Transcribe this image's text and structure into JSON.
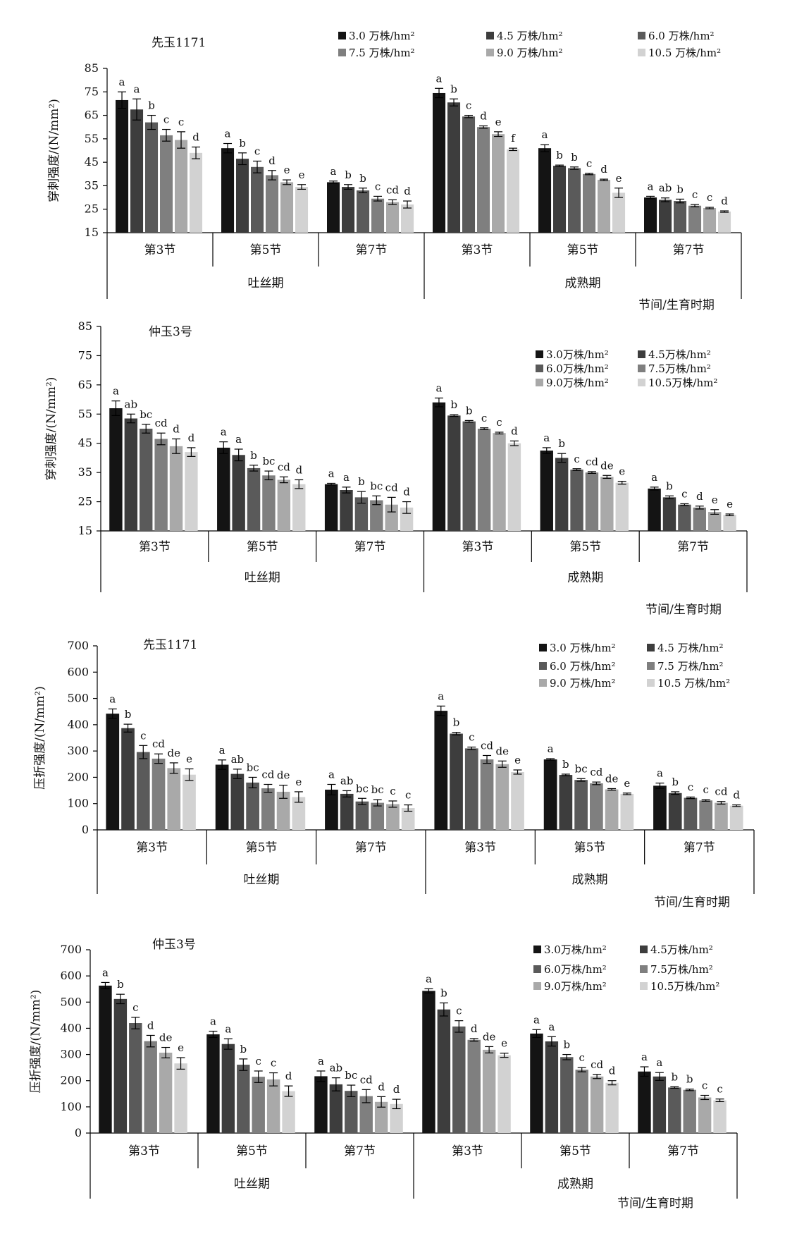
{
  "chart_data": [
    {
      "type": "bar",
      "title": "先玉1171",
      "ylabel": "穿刺强度/(N/mm²)",
      "xlabel": "节间/生育时期",
      "ylim": [
        15,
        85
      ],
      "yticks": [
        15,
        25,
        35,
        45,
        55,
        65,
        75,
        85
      ],
      "legend": "top-right",
      "series_names": [
        "3.0 万株/hm²",
        "4.5 万株/hm²",
        "6.0 万株/hm²",
        "7.5 万株/hm²",
        "9.0 万株/hm²",
        "10.5 万株/hm²"
      ],
      "periods": [
        "吐丝期",
        "成熟期"
      ],
      "groups": [
        {
          "period": "吐丝期",
          "label": "第3节",
          "values": [
            71.5,
            67.5,
            62,
            56.5,
            54.5,
            49
          ],
          "errors": [
            3.5,
            4.5,
            3,
            2.5,
            3.5,
            2.5
          ],
          "letters": [
            "a",
            "a",
            "b",
            "c",
            "c",
            "d"
          ]
        },
        {
          "period": "吐丝期",
          "label": "第5节",
          "values": [
            51,
            46.5,
            43,
            39.5,
            36.5,
            34.5
          ],
          "errors": [
            2,
            2.5,
            2.5,
            2,
            1,
            1
          ],
          "letters": [
            "a",
            "b",
            "c",
            "d",
            "e",
            "e"
          ]
        },
        {
          "period": "吐丝期",
          "label": "第7节",
          "values": [
            36.5,
            34.5,
            33,
            29.5,
            28,
            27
          ],
          "errors": [
            0.5,
            1,
            1,
            1,
            1,
            1.5
          ],
          "letters": [
            "a",
            "b",
            "b",
            "c",
            "cd",
            "d"
          ]
        },
        {
          "period": "成熟期",
          "label": "第3节",
          "values": [
            74.5,
            70.5,
            64.5,
            60,
            57,
            50.5
          ],
          "errors": [
            2,
            1.5,
            0.5,
            0.5,
            1,
            0.5
          ],
          "letters": [
            "a",
            "b",
            "c",
            "d",
            "e",
            "f"
          ]
        },
        {
          "period": "成熟期",
          "label": "第5节",
          "values": [
            51,
            43.5,
            42.5,
            40,
            37.5,
            32
          ],
          "errors": [
            1.5,
            0.3,
            0.5,
            0.3,
            0.3,
            2
          ],
          "letters": [
            "a",
            "b",
            "b",
            "c",
            "d",
            "e"
          ]
        },
        {
          "period": "成熟期",
          "label": "第7节",
          "values": [
            30,
            29,
            28.5,
            26.5,
            25.5,
            24
          ],
          "errors": [
            0.5,
            0.8,
            0.8,
            0.5,
            0.3,
            0.3
          ],
          "letters": [
            "a",
            "ab",
            "b",
            "c",
            "c",
            "d"
          ]
        }
      ]
    },
    {
      "type": "bar",
      "title": "仲玉3号",
      "ylabel": "穿刺强度/(N/mm²)",
      "xlabel": "节间/生育时期",
      "ylim": [
        15,
        85
      ],
      "yticks": [
        15,
        25,
        35,
        45,
        55,
        65,
        75,
        85
      ],
      "legend": "right",
      "series_names": [
        "3.0万株/hm²",
        "4.5万株/hm²",
        "6.0万株/hm²",
        "7.5万株/hm²",
        "9.0万株/hm²",
        "10.5万株/hm²"
      ],
      "periods": [
        "吐丝期",
        "成熟期"
      ],
      "groups": [
        {
          "period": "吐丝期",
          "label": "第3节",
          "values": [
            57,
            53.5,
            50,
            46.5,
            44,
            42
          ],
          "errors": [
            2.5,
            1.5,
            1.5,
            2,
            2.5,
            1.5
          ],
          "letters": [
            "a",
            "ab",
            "bc",
            "cd",
            "d",
            "d"
          ]
        },
        {
          "period": "吐丝期",
          "label": "第5节",
          "values": [
            43.5,
            41,
            36.5,
            34,
            32.5,
            31
          ],
          "errors": [
            2,
            2,
            1,
            1.5,
            1,
            1.5
          ],
          "letters": [
            "a",
            "a",
            "b",
            "bc",
            "cd",
            "d"
          ]
        },
        {
          "period": "吐丝期",
          "label": "第7节",
          "values": [
            31,
            29,
            26.5,
            25.5,
            24,
            23
          ],
          "errors": [
            0.3,
            1,
            2,
            1.5,
            2.5,
            2
          ],
          "letters": [
            "a",
            "a",
            "b",
            "bc",
            "cd",
            "d"
          ]
        },
        {
          "period": "成熟期",
          "label": "第3节",
          "values": [
            59,
            54.5,
            52.5,
            50,
            48.5,
            45
          ],
          "errors": [
            1.5,
            0.3,
            0.3,
            0.3,
            0.3,
            0.8
          ],
          "letters": [
            "a",
            "b",
            "b",
            "c",
            "c",
            "d"
          ]
        },
        {
          "period": "成熟期",
          "label": "第5节",
          "values": [
            42.5,
            40,
            36,
            35,
            33.5,
            31.5
          ],
          "errors": [
            1,
            1.5,
            0.3,
            0.3,
            0.5,
            0.5
          ],
          "letters": [
            "a",
            "b",
            "c",
            "cd",
            "de",
            "e"
          ]
        },
        {
          "period": "成熟期",
          "label": "第7节",
          "values": [
            29.5,
            26.5,
            24,
            23,
            21.5,
            20.5
          ],
          "errors": [
            0.5,
            0.5,
            0.3,
            0.5,
            0.8,
            0.3
          ],
          "letters": [
            "a",
            "b",
            "c",
            "d",
            "e",
            "e"
          ]
        }
      ]
    },
    {
      "type": "bar",
      "title": "先玉1171",
      "ylabel": "压折强度/(N/mm²)",
      "xlabel": "节间/生育时期",
      "ylim": [
        0,
        700
      ],
      "yticks": [
        0,
        100,
        200,
        300,
        400,
        500,
        600,
        700
      ],
      "legend": "right",
      "series_names": [
        "3.0 万株/hm²",
        "4.5 万株/hm²",
        "6.0 万株/hm²",
        "7.5 万株/hm²",
        "9.0 万株/hm²",
        "10.5 万株/hm²"
      ],
      "periods": [
        "吐丝期",
        "成熟期"
      ],
      "groups": [
        {
          "period": "吐丝期",
          "label": "第3节",
          "values": [
            442,
            387,
            296,
            271,
            235,
            210
          ],
          "errors": [
            18,
            15,
            25,
            18,
            20,
            22
          ],
          "letters": [
            "a",
            "b",
            "c",
            "cd",
            "de",
            "e"
          ]
        },
        {
          "period": "吐丝期",
          "label": "第5节",
          "values": [
            248,
            213,
            180,
            158,
            145,
            125
          ],
          "errors": [
            18,
            18,
            20,
            15,
            25,
            20
          ],
          "letters": [
            "a",
            "ab",
            "bc",
            "cd",
            "de",
            "e"
          ]
        },
        {
          "period": "吐丝期",
          "label": "第7节",
          "values": [
            153,
            137,
            108,
            103,
            98,
            83
          ],
          "errors": [
            20,
            12,
            12,
            12,
            12,
            12
          ],
          "letters": [
            "a",
            "ab",
            "bc",
            "bc",
            "c",
            "c"
          ]
        },
        {
          "period": "成熟期",
          "label": "第3节",
          "values": [
            453,
            366,
            310,
            268,
            250,
            220
          ],
          "errors": [
            18,
            5,
            5,
            15,
            12,
            8
          ],
          "letters": [
            "a",
            "b",
            "c",
            "cd",
            "de",
            "e"
          ]
        },
        {
          "period": "成熟期",
          "label": "第5节",
          "values": [
            268,
            209,
            190,
            177,
            154,
            137
          ],
          "errors": [
            3,
            3,
            5,
            5,
            3,
            3
          ],
          "letters": [
            "a",
            "b",
            "bc",
            "cd",
            "de",
            "e"
          ]
        },
        {
          "period": "成熟期",
          "label": "第7节",
          "values": [
            168,
            140,
            122,
            112,
            103,
            92
          ],
          "errors": [
            10,
            5,
            3,
            3,
            5,
            3
          ],
          "letters": [
            "a",
            "b",
            "c",
            "c",
            "cd",
            "d"
          ]
        }
      ]
    },
    {
      "type": "bar",
      "title": "仲玉3号",
      "ylabel": "压折强度/(N/mm²)",
      "xlabel": "节间/生育时期",
      "ylim": [
        0,
        700
      ],
      "yticks": [
        0,
        100,
        200,
        300,
        400,
        500,
        600,
        700
      ],
      "legend": "right",
      "series_names": [
        "3.0万株/hm²",
        "4.5万株/hm²",
        "6.0万株/hm²",
        "7.5万株/hm²",
        "9.0万株/hm²",
        "10.5万株/hm²"
      ],
      "periods": [
        "吐丝期",
        "成熟期"
      ],
      "groups": [
        {
          "period": "吐丝期",
          "label": "第3节",
          "values": [
            563,
            512,
            420,
            351,
            307,
            266
          ],
          "errors": [
            12,
            18,
            22,
            22,
            20,
            22
          ],
          "letters": [
            "a",
            "b",
            "c",
            "d",
            "de",
            "e"
          ]
        },
        {
          "period": "吐丝期",
          "label": "第5节",
          "values": [
            377,
            340,
            261,
            215,
            205,
            160
          ],
          "errors": [
            12,
            20,
            22,
            22,
            25,
            20
          ],
          "letters": [
            "a",
            "a",
            "b",
            "c",
            "c",
            "d"
          ]
        },
        {
          "period": "吐丝期",
          "label": "第7节",
          "values": [
            217,
            186,
            161,
            141,
            119,
            111
          ],
          "errors": [
            20,
            25,
            22,
            25,
            20,
            18
          ],
          "letters": [
            "a",
            "ab",
            "bc",
            "cd",
            "d",
            "d"
          ]
        },
        {
          "period": "成熟期",
          "label": "第3节",
          "values": [
            543,
            472,
            407,
            356,
            318,
            297
          ],
          "errors": [
            8,
            25,
            22,
            5,
            12,
            8
          ],
          "letters": [
            "a",
            "b",
            "c",
            "d",
            "de",
            "e"
          ]
        },
        {
          "period": "成熟期",
          "label": "第5节",
          "values": [
            380,
            350,
            290,
            242,
            216,
            192
          ],
          "errors": [
            15,
            18,
            10,
            8,
            8,
            8
          ],
          "letters": [
            "a",
            "a",
            "b",
            "c",
            "cd",
            "d"
          ]
        },
        {
          "period": "成熟期",
          "label": "第7节",
          "values": [
            235,
            216,
            174,
            165,
            136,
            125
          ],
          "errors": [
            18,
            15,
            3,
            3,
            8,
            5
          ],
          "letters": [
            "a",
            "a",
            "b",
            "b",
            "c",
            "c"
          ]
        }
      ]
    }
  ],
  "colors": [
    "#141414",
    "#3d3d3d",
    "#5a5a5a",
    "#7f7f7f",
    "#a9a9a9",
    "#d2d2d2"
  ]
}
